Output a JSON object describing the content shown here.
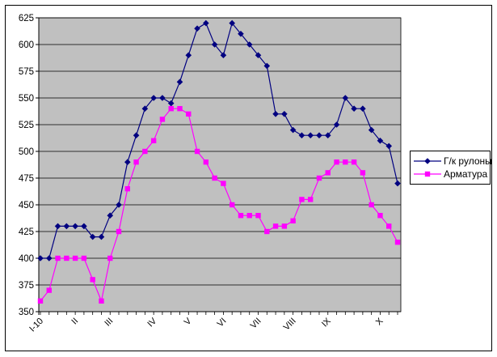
{
  "chart_data": {
    "type": "line",
    "title": "",
    "xlabel": "",
    "ylabel": "",
    "plot_bg": "#c0c0c0",
    "grid": true,
    "gridline_color": "#000000",
    "ylim": [
      350,
      625
    ],
    "y_tick_step": 25,
    "y_ticks": [
      350,
      375,
      400,
      425,
      450,
      475,
      500,
      525,
      550,
      575,
      600,
      625
    ],
    "x_tick_labels": [
      "I-10",
      "II",
      "III",
      "IV",
      "V",
      "VI",
      "VII",
      "VIII",
      "IX",
      "X"
    ],
    "x_tick_label_positions": [
      1,
      5,
      9,
      14,
      18,
      22,
      26,
      30,
      34,
      40
    ],
    "x_label_rotation": -45,
    "point_count": 42,
    "legend_position": "right",
    "legend_bg": "#ffffff",
    "legend_border": "#000000",
    "series": [
      {
        "name": "Г/к рулоны",
        "color": "#000080",
        "marker": "diamond",
        "values": [
          400,
          400,
          430,
          430,
          430,
          430,
          420,
          420,
          440,
          450,
          490,
          515,
          540,
          550,
          550,
          545,
          565,
          590,
          615,
          620,
          600,
          590,
          620,
          610,
          600,
          590,
          580,
          535,
          535,
          520,
          515,
          515,
          515,
          515,
          525,
          550,
          540,
          540,
          520,
          510,
          505,
          470
        ]
      },
      {
        "name": "Арматура",
        "color": "#ff00ff",
        "marker": "square",
        "values": [
          360,
          370,
          400,
          400,
          400,
          400,
          380,
          360,
          400,
          425,
          465,
          490,
          500,
          510,
          530,
          540,
          540,
          535,
          500,
          490,
          475,
          470,
          450,
          440,
          440,
          440,
          425,
          430,
          430,
          435,
          455,
          455,
          475,
          480,
          490,
          490,
          490,
          480,
          450,
          440,
          430,
          415
        ]
      }
    ]
  }
}
